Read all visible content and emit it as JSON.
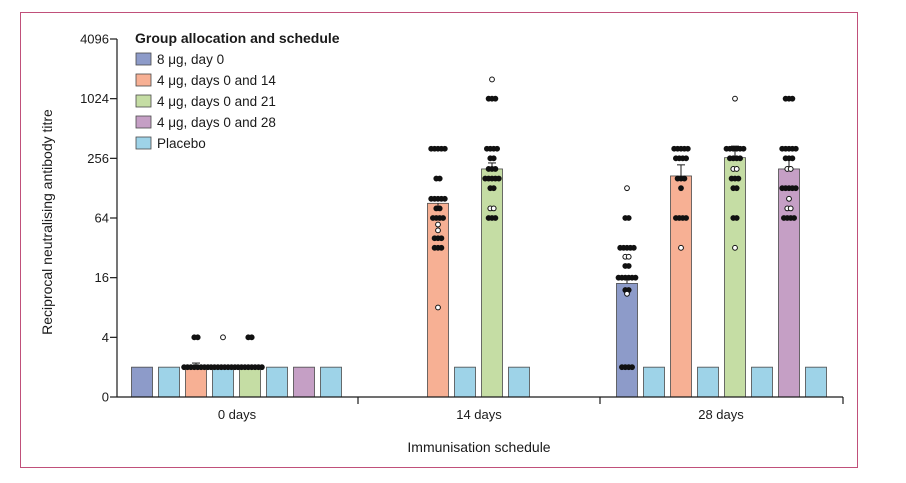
{
  "chart_data": {
    "type": "bar",
    "ylabel": "Reciprocal neutralising antibody titre",
    "xlabel": "Immunisation schedule",
    "y_scale": "log2",
    "ylim": [
      1,
      4096
    ],
    "yticks": [
      {
        "value": 1,
        "label": "0"
      },
      {
        "value": 4,
        "label": "4"
      },
      {
        "value": 16,
        "label": "16"
      },
      {
        "value": 64,
        "label": "64"
      },
      {
        "value": 256,
        "label": "256"
      },
      {
        "value": 1024,
        "label": "1024"
      },
      {
        "value": 4096,
        "label": "4096"
      }
    ],
    "categories": [
      "0 days",
      "14 days",
      "28 days"
    ],
    "legend": {
      "title": "Group allocation and schedule",
      "placement": "top-left"
    },
    "series": [
      {
        "name": "8 μg, day 0",
        "color": "#8d9bc9"
      },
      {
        "name": "4 μg, days 0 and 14",
        "color": "#f7b094"
      },
      {
        "name": "4 μg, days 0 and 21",
        "color": "#c5dda4"
      },
      {
        "name": "4 μg, days 0 and 28",
        "color": "#c59fc5"
      },
      {
        "name": "Placebo",
        "color": "#9ed3e8"
      }
    ],
    "bars": [
      {
        "category": "0 days",
        "series": "8 μg, day 0",
        "value": 2
      },
      {
        "category": "0 days",
        "series": "Placebo",
        "value": 2
      },
      {
        "category": "0 days",
        "series": "4 μg, days 0 and 14",
        "value": 2,
        "error": 2.2,
        "points": [
          {
            "v": 2,
            "n": 8
          },
          {
            "v": 4,
            "n": 2
          }
        ]
      },
      {
        "category": "0 days",
        "series": "Placebo",
        "value": 2,
        "points": [
          {
            "v": 2,
            "n": 8
          },
          {
            "v": 4,
            "n": 1,
            "open": true
          }
        ]
      },
      {
        "category": "0 days",
        "series": "4 μg, days 0 and 21",
        "value": 2,
        "points": [
          {
            "v": 2,
            "n": 8
          },
          {
            "v": 4,
            "n": 2
          }
        ]
      },
      {
        "category": "0 days",
        "series": "Placebo",
        "value": 2
      },
      {
        "category": "0 days",
        "series": "4 μg, days 0 and 28",
        "value": 2
      },
      {
        "category": "0 days",
        "series": "Placebo",
        "value": 2
      },
      {
        "category": "14 days",
        "series": "4 μg, days 0 and 14",
        "value": 90,
        "error": 78,
        "points": [
          {
            "v": 320,
            "n": 5
          },
          {
            "v": 160,
            "n": 2
          },
          {
            "v": 100,
            "n": 5
          },
          {
            "v": 80,
            "n": 2
          },
          {
            "v": 64,
            "n": 4
          },
          {
            "v": 55,
            "n": 1,
            "open": true
          },
          {
            "v": 48,
            "n": 1,
            "open": true
          },
          {
            "v": 40,
            "n": 3
          },
          {
            "v": 32,
            "n": 3
          },
          {
            "v": 8,
            "n": 1,
            "open": true
          }
        ]
      },
      {
        "category": "14 days",
        "series": "Placebo",
        "value": 2
      },
      {
        "category": "14 days",
        "series": "4 μg, days 0 and 21",
        "value": 200,
        "error": 230,
        "points": [
          {
            "v": 1600,
            "n": 1,
            "open": true
          },
          {
            "v": 1024,
            "n": 3
          },
          {
            "v": 320,
            "n": 4
          },
          {
            "v": 256,
            "n": 2
          },
          {
            "v": 200,
            "n": 3
          },
          {
            "v": 160,
            "n": 5
          },
          {
            "v": 128,
            "n": 2
          },
          {
            "v": 80,
            "n": 2,
            "open": true
          },
          {
            "v": 64,
            "n": 3
          }
        ]
      },
      {
        "category": "14 days",
        "series": "Placebo",
        "value": 2
      },
      {
        "category": "28 days",
        "series": "8 μg, day 0",
        "value": 14,
        "error": 16.5,
        "points": [
          {
            "v": 128,
            "n": 1,
            "open": true
          },
          {
            "v": 64,
            "n": 2
          },
          {
            "v": 32,
            "n": 5
          },
          {
            "v": 26,
            "n": 2,
            "open": true
          },
          {
            "v": 21,
            "n": 2
          },
          {
            "v": 16,
            "n": 6
          },
          {
            "v": 12,
            "n": 2
          },
          {
            "v": 11,
            "n": 1,
            "open": true
          },
          {
            "v": 2,
            "n": 4
          }
        ]
      },
      {
        "category": "28 days",
        "series": "Placebo",
        "value": 2
      },
      {
        "category": "28 days",
        "series": "4 μg, days 0 and 14",
        "value": 170,
        "error": 220,
        "points": [
          {
            "v": 320,
            "n": 5
          },
          {
            "v": 256,
            "n": 4
          },
          {
            "v": 160,
            "n": 3
          },
          {
            "v": 128,
            "n": 1
          },
          {
            "v": 64,
            "n": 4
          },
          {
            "v": 32,
            "n": 1,
            "open": true
          }
        ]
      },
      {
        "category": "28 days",
        "series": "Placebo",
        "value": 2
      },
      {
        "category": "28 days",
        "series": "4 μg, days 0 and 21",
        "value": 260,
        "error": 340,
        "points": [
          {
            "v": 1024,
            "n": 1,
            "open": true
          },
          {
            "v": 320,
            "n": 6
          },
          {
            "v": 256,
            "n": 4
          },
          {
            "v": 200,
            "n": 2,
            "open": true
          },
          {
            "v": 160,
            "n": 3
          },
          {
            "v": 128,
            "n": 2
          },
          {
            "v": 64,
            "n": 2
          },
          {
            "v": 32,
            "n": 1,
            "open": true
          }
        ]
      },
      {
        "category": "28 days",
        "series": "Placebo",
        "value": 2
      },
      {
        "category": "28 days",
        "series": "4 μg, days 0 and 28",
        "value": 200,
        "error": 250,
        "points": [
          {
            "v": 1024,
            "n": 3
          },
          {
            "v": 320,
            "n": 5
          },
          {
            "v": 256,
            "n": 3
          },
          {
            "v": 200,
            "n": 2,
            "open": true
          },
          {
            "v": 128,
            "n": 5
          },
          {
            "v": 100,
            "n": 1,
            "open": true
          },
          {
            "v": 80,
            "n": 2,
            "open": true
          },
          {
            "v": 64,
            "n": 4
          }
        ]
      },
      {
        "category": "28 days",
        "series": "Placebo",
        "value": 2
      }
    ]
  }
}
